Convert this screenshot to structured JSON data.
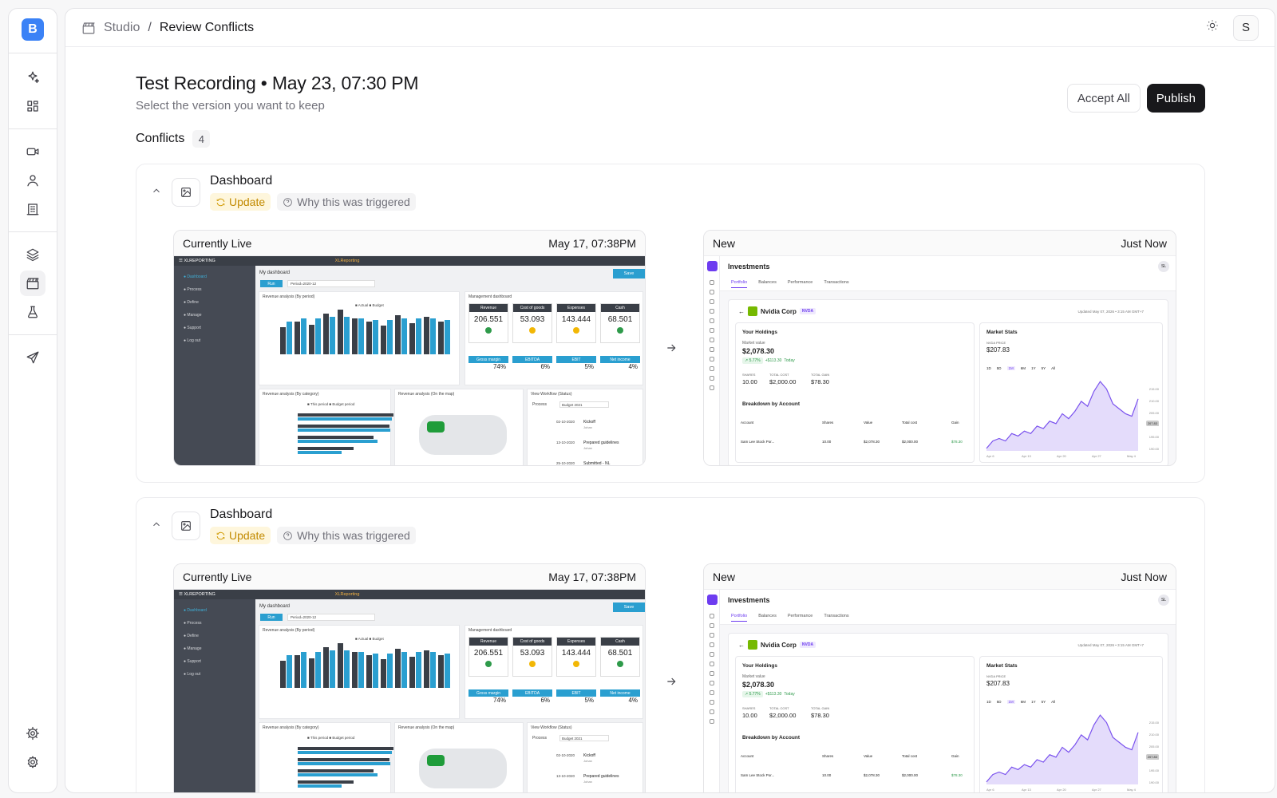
{
  "sidebar": {
    "logo": "B",
    "groups": [
      [
        "sparkles-icon",
        "dashboard-icon"
      ],
      [
        "video-icon",
        "user-icon",
        "building-icon"
      ],
      [
        "layers-icon",
        "clapperboard-icon",
        "flask-icon"
      ],
      [
        "send-icon"
      ]
    ],
    "bottom": [
      "settings-cog-icon",
      "settings-gear-icon"
    ],
    "active": "clapperboard-icon"
  },
  "header": {
    "breadcrumb_root": "Studio",
    "breadcrumb_sep": "/",
    "breadcrumb_current": "Review Conflicts",
    "avatar": "S"
  },
  "page": {
    "title": "Test Recording • May 23, 07:30 PM",
    "subtitle": "Select the version you want to keep",
    "accept_all": "Accept All",
    "publish": "Publish",
    "conflicts_label": "Conflicts",
    "conflicts_count": "4"
  },
  "conflicts": [
    {
      "title": "Dashboard",
      "tag_update": "Update",
      "tag_why": "Why this was triggered",
      "left": {
        "label": "Currently Live",
        "timestamp": "May 17, 07:38PM"
      },
      "right": {
        "label": "New",
        "timestamp": "Just Now"
      }
    },
    {
      "title": "Dashboard",
      "tag_update": "Update",
      "tag_why": "Why this was triggered",
      "left": {
        "label": "Currently Live",
        "timestamp": "May 17, 07:38PM"
      },
      "right": {
        "label": "New",
        "timestamp": "Just Now"
      }
    }
  ],
  "xl_preview": {
    "brand": "XLREPORTING",
    "center_title": "XLReporting",
    "menu": [
      "Dashboard",
      "Process",
      "Define",
      "Manage",
      "Support",
      "Log out"
    ],
    "page_title": "My dashboard",
    "run": "Run",
    "period": "Period=2020-12",
    "save": "Save",
    "revenue_title": "Revenue analysis (By period)",
    "legend": [
      "Actual",
      "Budget"
    ],
    "mgmt_title": "Management dashboard",
    "kpis": [
      {
        "label": "Revenue",
        "value": "206.551",
        "status": "#2e9a4a"
      },
      {
        "label": "Cost of goods",
        "value": "53.093",
        "status": "#f2b705"
      },
      {
        "label": "Expenses",
        "value": "143.444",
        "status": "#f2b705"
      },
      {
        "label": "Cash",
        "value": "68.501",
        "status": "#2e9a4a"
      }
    ],
    "kpis2": [
      {
        "label": "Gross margin",
        "value": "74%"
      },
      {
        "label": "EBITDA",
        "value": "6%"
      },
      {
        "label": "EBIT",
        "value": "5%"
      },
      {
        "label": "Net income",
        "value": "4%"
      }
    ],
    "cat_title": "Revenue analysis (By category)",
    "cat_legend": [
      "This period",
      "Budget period"
    ],
    "map_title": "Revenue analysis (On the map)",
    "wf_title": "View Workflow (Status)",
    "wf_process": "Process",
    "wf_budget": "Budget 2021",
    "wf_steps": [
      {
        "date": "02-10-2020",
        "label": "Kickoff",
        "who": "Johan"
      },
      {
        "date": "13-10-2020",
        "label": "Prepared guidelines",
        "who": "Johan"
      },
      {
        "date": "25-10-2020",
        "label": "Submitted - NL",
        "who": ""
      }
    ],
    "bars_actual": [
      18,
      22,
      20,
      27,
      30,
      24,
      22,
      19,
      26,
      21,
      25,
      22
    ],
    "bars_budget": [
      22,
      24,
      24,
      25,
      25,
      24,
      23,
      23,
      24,
      24,
      24,
      23
    ]
  },
  "inv_preview": {
    "title": "Investments",
    "tabs": [
      "Portfolio",
      "Balances",
      "Performance",
      "Transactions"
    ],
    "user": "SL",
    "company": "Nvidia Corp",
    "ticker": "NVDA",
    "updated": "Updated May 07, 2026 • 3:15 AM GMT+7",
    "holdings_title": "Your Holdings",
    "market_value_label": "Market value",
    "market_value": "$2,078.30",
    "change": "↗ 5.77%",
    "change_abs": "+$113.30",
    "today": "Today",
    "shares_label": "SHARES",
    "shares": "10.00",
    "cost_label": "TOTAL COST",
    "cost": "$2,000.00",
    "gain_label": "TOTAL GAIN",
    "gain": "$78.30",
    "breakdown_title": "Breakdown by Account",
    "cols": [
      "Account",
      "Shares",
      "Value",
      "Total cost",
      "Gain"
    ],
    "row": [
      "Sam Lee Stock Por...",
      "10.00",
      "$2,078.30",
      "$2,000.00",
      "$78.30"
    ],
    "stats_title": "Market Stats",
    "price_label": "NVDA PRICE",
    "price": "$207.83",
    "ranges": [
      "1D",
      "5D",
      "1M",
      "6M",
      "1Y",
      "5Y",
      "All"
    ],
    "y_ticks": [
      "215.00",
      "210.00",
      "205.00",
      "200.00",
      "195.00",
      "190.00"
    ],
    "x_ticks": [
      "Apr 6",
      "Apr 13",
      "Apr 20",
      "Apr 27",
      "May 4"
    ],
    "series": [
      189,
      192,
      193,
      192,
      195,
      194,
      196,
      195,
      198,
      197,
      200,
      199,
      203,
      201,
      204,
      208,
      206,
      212,
      216,
      213,
      207,
      205,
      203,
      202,
      209
    ],
    "price_tag": "207.83"
  }
}
